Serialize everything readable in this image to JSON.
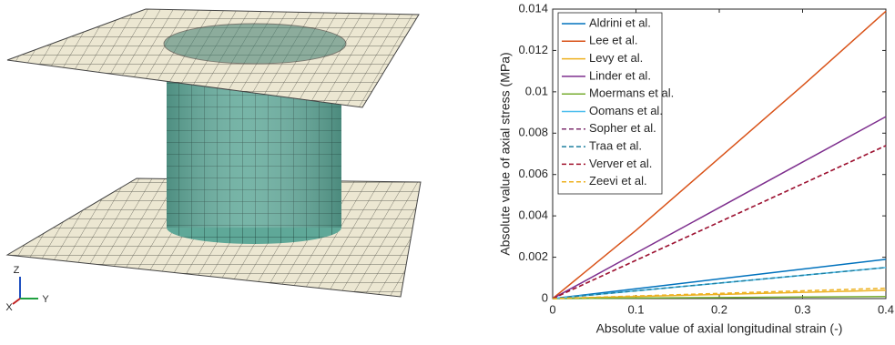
{
  "mesh_view": {
    "axis_labels": [
      "Z",
      "X",
      "Y"
    ]
  },
  "chart_data": {
    "type": "line",
    "xlabel": "Absolute value of axial longitudinal strain (-)",
    "ylabel": "Absolute value of axial stress (MPa)",
    "x": [
      0,
      0.1,
      0.2,
      0.3,
      0.4
    ],
    "xlim": [
      0,
      0.4
    ],
    "xticks": [
      0,
      0.1,
      0.2,
      0.3,
      0.4
    ],
    "ylim": [
      0,
      0.014
    ],
    "yticks": [
      0,
      0.002,
      0.004,
      0.006,
      0.008,
      0.01,
      0.012,
      0.014
    ],
    "legend": "upper-left",
    "series": [
      {
        "name": "Aldrini et al.",
        "color": "#0072bd",
        "linestyle": "solid",
        "values": [
          0,
          0.000475,
          0.00095,
          0.001425,
          0.0019
        ]
      },
      {
        "name": "Lee et al.",
        "color": "#d95319",
        "linestyle": "solid",
        "values": [
          0,
          0.0033,
          0.0068,
          0.0103,
          0.0139
        ]
      },
      {
        "name": "Levy et al.",
        "color": "#edb120",
        "linestyle": "solid",
        "values": [
          0,
          0.0001,
          0.0002,
          0.0003,
          0.0004
        ]
      },
      {
        "name": "Linder et al.",
        "color": "#7e2f8e",
        "linestyle": "solid",
        "values": [
          0,
          0.0022,
          0.0044,
          0.0066,
          0.0088
        ]
      },
      {
        "name": "Moermans et al.",
        "color": "#77ac30",
        "linestyle": "solid",
        "values": [
          0,
          2.5e-05,
          5e-05,
          7.5e-05,
          0.0001
        ]
      },
      {
        "name": "Oomans et al.",
        "color": "#4dbeee",
        "linestyle": "solid",
        "values": [
          0,
          0.000375,
          0.00075,
          0.001125,
          0.0015
        ]
      },
      {
        "name": "Sopher et al.",
        "color": "#7e2f6e",
        "linestyle": "dashed",
        "values": [
          0,
          0.00185,
          0.0037,
          0.00555,
          0.0074
        ]
      },
      {
        "name": "Traa et al.",
        "color": "#1f7f9f",
        "linestyle": "dashed",
        "values": [
          0,
          0.000375,
          0.00075,
          0.001125,
          0.0015
        ]
      },
      {
        "name": "Verver et al.",
        "color": "#a2142f",
        "linestyle": "dashed",
        "values": [
          0,
          0.00185,
          0.0037,
          0.00555,
          0.0074
        ]
      },
      {
        "name": "Zeevi et al.",
        "color": "#edb120",
        "linestyle": "dashed",
        "values": [
          0,
          0.000125,
          0.00025,
          0.000375,
          0.0005
        ]
      }
    ]
  }
}
